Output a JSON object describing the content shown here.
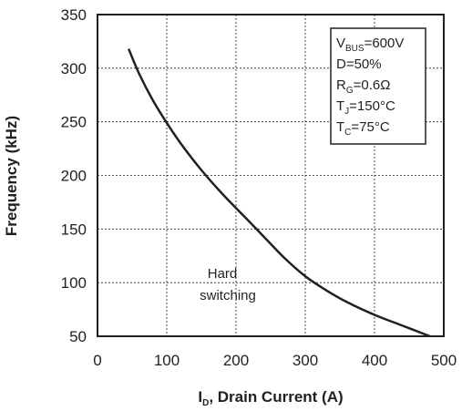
{
  "chart_data": {
    "type": "line",
    "xlabel_main": "I",
    "xlabel_sub": "D",
    "xlabel_rest": ", Drain Current (A)",
    "ylabel": "Frequency (kHz)",
    "xlim": [
      0,
      500
    ],
    "ylim": [
      50,
      350
    ],
    "x_ticks": [
      0,
      100,
      200,
      300,
      400,
      500
    ],
    "y_ticks": [
      50,
      100,
      150,
      200,
      250,
      300,
      350
    ],
    "x_tick_labels": [
      "0",
      "100",
      "200",
      "300",
      "400",
      "500"
    ],
    "y_tick_labels": [
      "50",
      "100",
      "150",
      "200",
      "250",
      "300",
      "350"
    ],
    "grid": true,
    "series": [
      {
        "x": [
          45,
          60,
          80,
          100,
          120,
          150,
          180,
          210,
          240,
          270,
          300,
          330,
          360,
          400,
          440,
          480
        ],
        "y": [
          318,
          295,
          270,
          249,
          230,
          205,
          183,
          163,
          143,
          123,
          106,
          93,
          82,
          70,
          60,
          50
        ]
      }
    ],
    "annotation": {
      "line1": "Hard",
      "line2": "switching"
    },
    "legend_box": {
      "position": "top-right",
      "lines": [
        {
          "main": "V",
          "sub": "BUS",
          "rest": "=600V"
        },
        {
          "main": "D=50%",
          "sub": "",
          "rest": ""
        },
        {
          "main": "R",
          "sub": "G",
          "rest": "=0.6Ω"
        },
        {
          "main": "T",
          "sub": "J",
          "rest": "=150°C"
        },
        {
          "main": "T",
          "sub": "C",
          "rest": "=75°C"
        }
      ]
    },
    "colors": {
      "line": "#231f20",
      "grid": "#231f20",
      "frame": "#231f20"
    }
  }
}
